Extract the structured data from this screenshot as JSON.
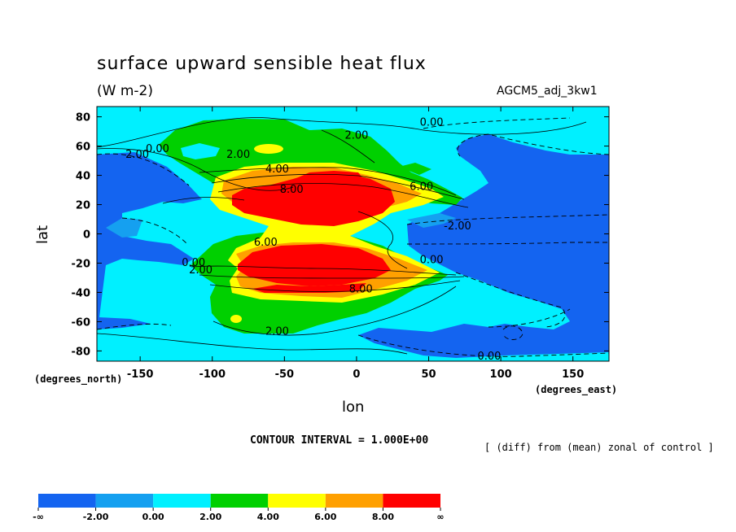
{
  "title": "surface upward sensible heat flux",
  "units": "(W m-2)",
  "run_name": "AGCM5_adj_3kw1",
  "contour_interval": "CONTOUR INTERVAL = 1.000E+00",
  "note": "[ (diff) from (mean) zonal of control ]",
  "chart_data": {
    "type": "heatmap",
    "title": "surface upward sensible heat flux",
    "xlabel": "lon",
    "ylabel": "lat",
    "x_units": "(degrees_east)",
    "y_units": "(degrees_north)",
    "xlim": [
      -180,
      175
    ],
    "ylim": [
      -87,
      87
    ],
    "xticks": [
      -150,
      -100,
      -50,
      0,
      50,
      100,
      150
    ],
    "yticks": [
      80,
      60,
      40,
      20,
      0,
      -20,
      -40,
      -60,
      -80
    ],
    "contour_labels": [
      {
        "text": "2.00",
        "lon": 0,
        "lat": 65
      },
      {
        "text": "0.00",
        "lon": 52,
        "lat": 74
      },
      {
        "text": "0.00",
        "lon": -138,
        "lat": 56
      },
      {
        "text": "2.00",
        "lon": -152,
        "lat": 52
      },
      {
        "text": "2.00",
        "lon": -82,
        "lat": 52
      },
      {
        "text": "4.00",
        "lon": -55,
        "lat": 42
      },
      {
        "text": "8.00",
        "lon": -45,
        "lat": 28
      },
      {
        "text": "6.00",
        "lon": 45,
        "lat": 30
      },
      {
        "text": "-2.00",
        "lon": 70,
        "lat": 3
      },
      {
        "text": "6.00",
        "lon": -63,
        "lat": -8
      },
      {
        "text": "0.00",
        "lon": -113,
        "lat": -22
      },
      {
        "text": "2.00",
        "lon": -108,
        "lat": -27
      },
      {
        "text": "0.00",
        "lon": 52,
        "lat": -20
      },
      {
        "text": "8.00",
        "lon": 3,
        "lat": -40
      },
      {
        "text": "2.00",
        "lon": -55,
        "lat": -69
      },
      {
        "text": "0.00",
        "lon": 92,
        "lat": -86
      }
    ],
    "colorbar": {
      "labels": [
        "-∞",
        "-2.00",
        "0.00",
        "2.00",
        "4.00",
        "6.00",
        "8.00",
        "∞"
      ],
      "colors": [
        "#1464f0",
        "#15a0f0",
        "#00f0ff",
        "#00d000",
        "#ffff00",
        "#ffa000",
        "#ff0000"
      ]
    }
  }
}
